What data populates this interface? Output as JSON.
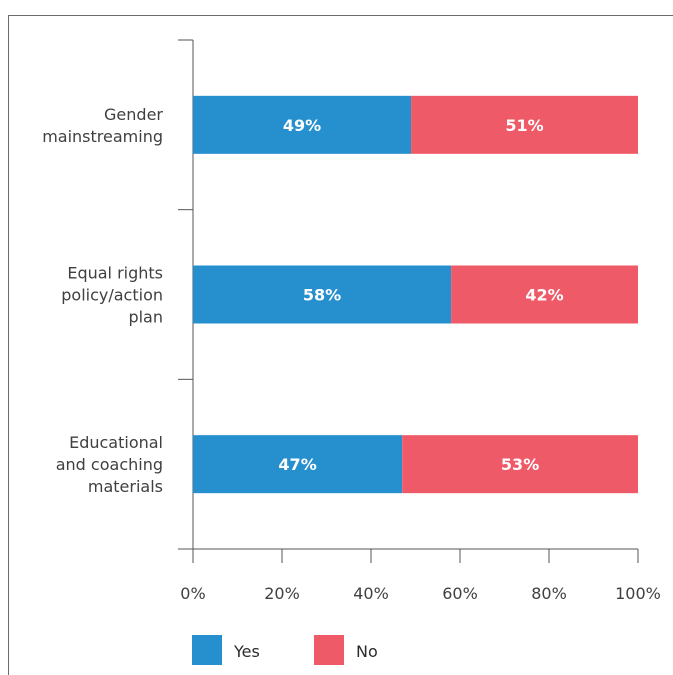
{
  "chart_data": {
    "type": "bar",
    "orientation": "horizontal",
    "stacked": true,
    "categories": [
      [
        "Gender",
        "mainstreaming"
      ],
      [
        "Equal rights",
        "policy/action",
        "plan"
      ],
      [
        "Educational",
        "and coaching",
        "materials"
      ]
    ],
    "series": [
      {
        "name": "Yes",
        "values": [
          49,
          58,
          47
        ],
        "labels": [
          "49%",
          "58%",
          "47%"
        ],
        "color": "#2690cf"
      },
      {
        "name": "No",
        "values": [
          51,
          42,
          53
        ],
        "labels": [
          "51%",
          "42%",
          "53%"
        ],
        "color": "#ef5a68"
      }
    ],
    "xlim": [
      0,
      100
    ],
    "xticks": [
      0,
      20,
      40,
      60,
      80,
      100
    ],
    "xtick_labels": [
      "0%",
      "20%",
      "40%",
      "60%",
      "80%",
      "100%"
    ],
    "grid": false,
    "legend_position": "bottom"
  }
}
